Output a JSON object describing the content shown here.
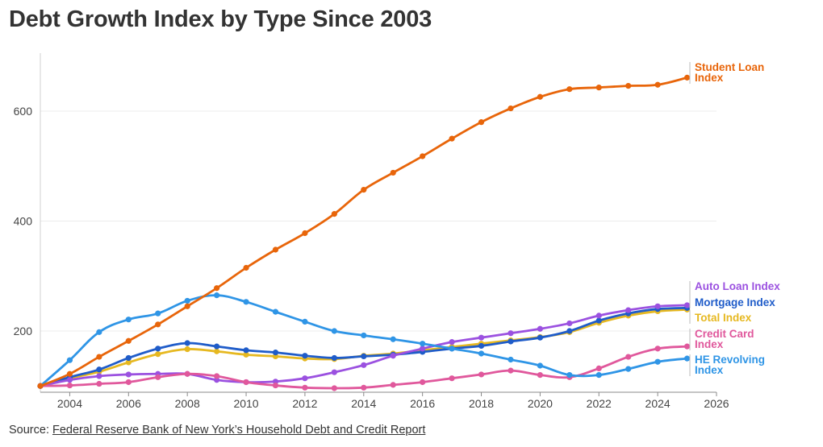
{
  "chart_data": {
    "type": "line",
    "title": "Debt Growth Index by Type Since 2003",
    "xlabel": "",
    "ylabel": "",
    "xlim": [
      2003,
      2026
    ],
    "ylim": [
      100,
      700
    ],
    "x_ticks": [
      2004,
      2006,
      2008,
      2010,
      2012,
      2014,
      2016,
      2018,
      2020,
      2022,
      2024,
      2026
    ],
    "y_ticks": [
      200,
      400,
      600
    ],
    "grid": "horizontal",
    "legend": "direct labels right",
    "x": [
      2003,
      2004,
      2005,
      2006,
      2007,
      2008,
      2009,
      2010,
      2011,
      2012,
      2013,
      2014,
      2015,
      2016,
      2017,
      2018,
      2019,
      2020,
      2021,
      2022,
      2023,
      2024,
      2025
    ],
    "series": [
      {
        "name": "Student Loan Index",
        "label_lines": [
          "Student Loan",
          "Index"
        ],
        "color": "#e8650a",
        "values": [
          100,
          122,
          153,
          182,
          212,
          245,
          278,
          315,
          348,
          378,
          413,
          457,
          488,
          518,
          550,
          580,
          605,
          626,
          640,
          643,
          646,
          648,
          661
        ]
      },
      {
        "name": "Auto Loan Index",
        "label_lines": [
          "Auto Loan Index"
        ],
        "color": "#9b51e0",
        "values": [
          100,
          111,
          118,
          121,
          122,
          122,
          111,
          107,
          108,
          114,
          125,
          138,
          155,
          168,
          180,
          188,
          196,
          204,
          214,
          228,
          238,
          245,
          247
        ]
      },
      {
        "name": "Mortgage Index",
        "label_lines": [
          "Mortgage Index"
        ],
        "color": "#1f5cc9",
        "values": [
          100,
          116,
          130,
          151,
          168,
          178,
          172,
          165,
          161,
          155,
          151,
          154,
          157,
          162,
          168,
          173,
          181,
          188,
          200,
          219,
          232,
          240,
          242
        ]
      },
      {
        "name": "Total Index",
        "label_lines": [
          "Total Index"
        ],
        "color": "#e6b820",
        "values": [
          100,
          114,
          126,
          143,
          158,
          167,
          163,
          157,
          154,
          150,
          149,
          155,
          159,
          165,
          171,
          177,
          183,
          189,
          198,
          215,
          228,
          236,
          239
        ]
      },
      {
        "name": "Credit Card Index",
        "label_lines": [
          "Credit Card",
          "Index"
        ],
        "color": "#e0589c",
        "values": [
          100,
          101,
          104,
          107,
          116,
          122,
          118,
          107,
          101,
          97,
          96,
          97,
          102,
          107,
          114,
          121,
          128,
          120,
          116,
          132,
          153,
          168,
          172
        ]
      },
      {
        "name": "HE Revolving Index",
        "label_lines": [
          "HE Revolving",
          "Index"
        ],
        "color": "#2f95e6",
        "values": [
          100,
          147,
          198,
          221,
          232,
          255,
          265,
          253,
          235,
          217,
          200,
          192,
          185,
          177,
          168,
          159,
          148,
          137,
          120,
          120,
          131,
          144,
          150
        ]
      }
    ],
    "source_prefix": "Source: ",
    "source_link": "Federal Reserve Bank of New York’s Household Debt and Credit Report"
  }
}
